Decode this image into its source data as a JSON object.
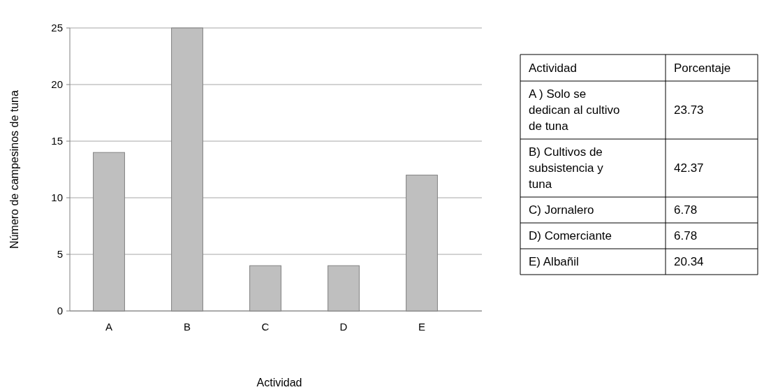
{
  "chart_data": [
    {
      "type": "bar",
      "xlabel": "Actividad",
      "ylabel": "Número de campesinos de tuna",
      "categories": [
        "A",
        "B",
        "C",
        "D",
        "E"
      ],
      "values": [
        14,
        25,
        4,
        4,
        12
      ],
      "color": "#bfbfbf",
      "ylim": [
        0,
        25
      ],
      "yticks": [
        0,
        5,
        10,
        15,
        20,
        25
      ],
      "grid": "y"
    },
    {
      "type": "other",
      "data_labels": true,
      "annotations": [
        "Actividad",
        "Porcentaje"
      ],
      "categories": [
        "A ) Solo se dedican al cultivo de tuna",
        "B) Cultivos de subsistencia y tuna",
        "C) Jornalero",
        "D) Comerciante",
        "E) Albañil"
      ],
      "values": [
        23.73,
        42.37,
        6.78,
        6.78,
        20.34
      ]
    }
  ]
}
